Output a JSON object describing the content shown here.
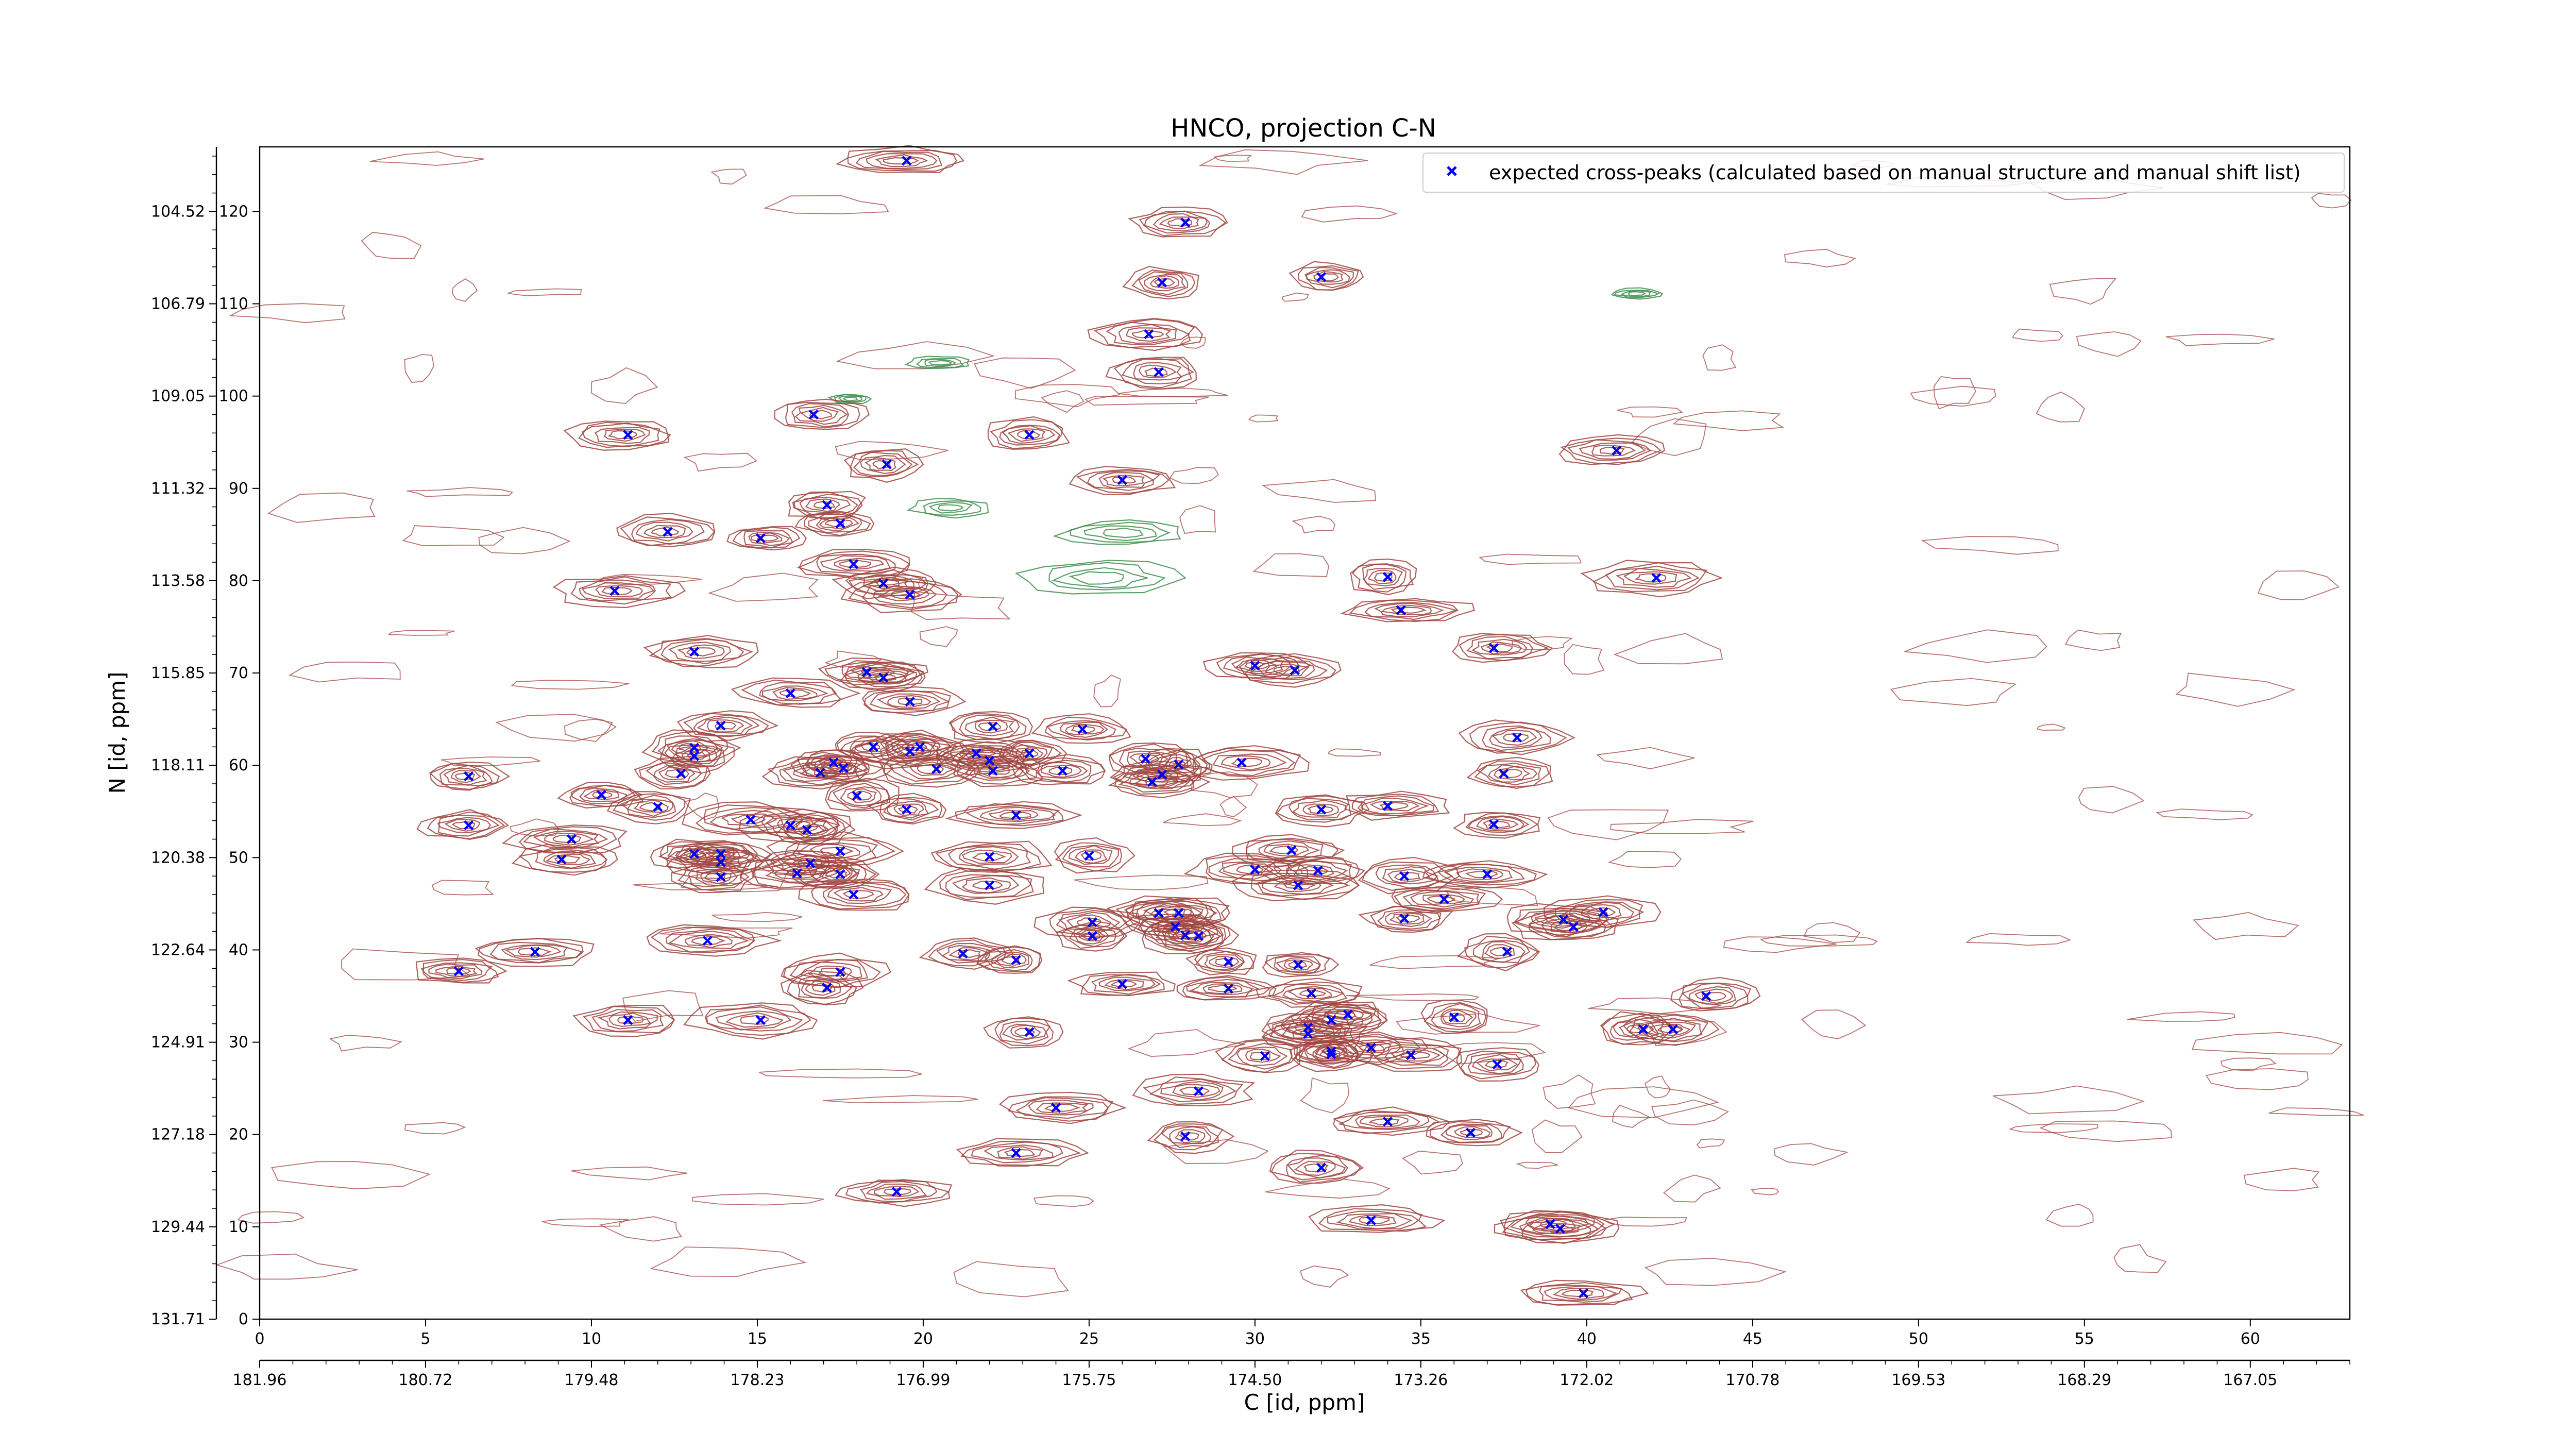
{
  "chart_data": {
    "type": "scatter",
    "title": "HNCO, projection C-N",
    "xlabel": "C [id, ppm]",
    "ylabel": "N [id, ppm]",
    "xlim": [
      0,
      63
    ],
    "ylim": [
      0,
      127
    ],
    "x_index_ticks": [
      0,
      5,
      10,
      15,
      20,
      25,
      30,
      35,
      40,
      45,
      50,
      55,
      60
    ],
    "x_ppm_tick_labels": [
      "181.96",
      "180.72",
      "179.48",
      "178.23",
      "176.99",
      "175.75",
      "174.50",
      "173.26",
      "172.02",
      "170.78",
      "169.53",
      "168.29",
      "167.05"
    ],
    "y_index_ticks": [
      0,
      10,
      20,
      30,
      40,
      50,
      60,
      70,
      80,
      90,
      100,
      110,
      120
    ],
    "y_ppm_tick_labels": [
      "131.71",
      "129.44",
      "127.18",
      "124.91",
      "122.64",
      "120.38",
      "118.11",
      "115.85",
      "113.58",
      "111.32",
      "109.05",
      "106.79",
      "104.52"
    ],
    "grid": false,
    "legend_position": "top-right",
    "contour_colors": {
      "positive": "#a0453f",
      "negative": "#3e8f4e"
    },
    "series": [
      {
        "name": "expected cross-peaks (calculated based on manual structure and manual shift list)",
        "marker": "x",
        "color": "#0000ff",
        "points": [
          [
            19.5,
            125.5
          ],
          [
            27.9,
            118.8
          ],
          [
            27.2,
            112.3
          ],
          [
            32.0,
            112.9
          ],
          [
            26.8,
            106.7
          ],
          [
            27.1,
            102.6
          ],
          [
            16.7,
            98.0
          ],
          [
            11.1,
            95.8
          ],
          [
            23.2,
            95.8
          ],
          [
            40.9,
            94.1
          ],
          [
            18.9,
            92.6
          ],
          [
            26.0,
            90.9
          ],
          [
            17.1,
            88.2
          ],
          [
            17.5,
            86.2
          ],
          [
            12.3,
            85.3
          ],
          [
            15.1,
            84.6
          ],
          [
            17.9,
            81.8
          ],
          [
            10.7,
            78.9
          ],
          [
            18.8,
            79.7
          ],
          [
            19.6,
            78.5
          ],
          [
            34.0,
            80.4
          ],
          [
            42.1,
            80.3
          ],
          [
            34.4,
            76.8
          ],
          [
            13.1,
            72.3
          ],
          [
            37.2,
            72.7
          ],
          [
            30.0,
            70.8
          ],
          [
            31.2,
            70.3
          ],
          [
            18.3,
            70.1
          ],
          [
            18.8,
            69.5
          ],
          [
            16.0,
            67.8
          ],
          [
            19.6,
            66.9
          ],
          [
            13.9,
            64.3
          ],
          [
            22.1,
            64.2
          ],
          [
            24.8,
            63.9
          ],
          [
            37.9,
            63.0
          ],
          [
            18.5,
            62.0
          ],
          [
            19.9,
            62.0
          ],
          [
            13.1,
            61.9
          ],
          [
            19.6,
            61.5
          ],
          [
            13.1,
            61.0
          ],
          [
            21.6,
            61.3
          ],
          [
            23.2,
            61.3
          ],
          [
            22.0,
            60.5
          ],
          [
            27.7,
            60.1
          ],
          [
            26.7,
            60.7
          ],
          [
            29.6,
            60.3
          ],
          [
            12.7,
            59.1
          ],
          [
            16.9,
            59.2
          ],
          [
            17.6,
            59.7
          ],
          [
            17.3,
            60.3
          ],
          [
            20.4,
            59.6
          ],
          [
            22.1,
            59.4
          ],
          [
            24.2,
            59.4
          ],
          [
            27.2,
            59.0
          ],
          [
            26.9,
            58.2
          ],
          [
            37.5,
            59.1
          ],
          [
            6.3,
            58.8
          ],
          [
            10.3,
            56.8
          ],
          [
            12.0,
            55.5
          ],
          [
            18.0,
            56.7
          ],
          [
            19.5,
            55.2
          ],
          [
            32.0,
            55.2
          ],
          [
            34.0,
            55.6
          ],
          [
            22.8,
            54.6
          ],
          [
            14.8,
            54.1
          ],
          [
            16.0,
            53.5
          ],
          [
            16.5,
            53.0
          ],
          [
            37.2,
            53.6
          ],
          [
            6.3,
            53.5
          ],
          [
            9.4,
            52.0
          ],
          [
            13.1,
            50.4
          ],
          [
            13.9,
            50.4
          ],
          [
            16.6,
            49.4
          ],
          [
            17.5,
            50.7
          ],
          [
            22.0,
            50.1
          ],
          [
            25.0,
            50.2
          ],
          [
            31.1,
            50.8
          ],
          [
            9.1,
            49.8
          ],
          [
            13.9,
            49.5
          ],
          [
            13.9,
            47.9
          ],
          [
            16.2,
            48.3
          ],
          [
            17.5,
            48.2
          ],
          [
            30.0,
            48.7
          ],
          [
            31.9,
            48.6
          ],
          [
            34.5,
            48.0
          ],
          [
            37.0,
            48.2
          ],
          [
            22.0,
            47.0
          ],
          [
            31.3,
            47.0
          ],
          [
            17.9,
            46.0
          ],
          [
            35.7,
            45.5
          ],
          [
            40.5,
            44.1
          ],
          [
            27.1,
            44.0
          ],
          [
            27.7,
            44.0
          ],
          [
            39.3,
            43.3
          ],
          [
            25.1,
            43.0
          ],
          [
            34.5,
            43.4
          ],
          [
            27.6,
            42.5
          ],
          [
            39.6,
            42.5
          ],
          [
            27.9,
            41.6
          ],
          [
            25.1,
            41.5
          ],
          [
            28.3,
            41.5
          ],
          [
            13.5,
            41.0
          ],
          [
            8.3,
            39.8
          ],
          [
            21.2,
            39.6
          ],
          [
            37.6,
            39.8
          ],
          [
            22.8,
            38.9
          ],
          [
            29.2,
            38.7
          ],
          [
            31.3,
            38.4
          ],
          [
            6.0,
            37.7
          ],
          [
            17.5,
            37.6
          ],
          [
            26.0,
            36.3
          ],
          [
            17.1,
            35.9
          ],
          [
            29.2,
            35.8
          ],
          [
            31.7,
            35.3
          ],
          [
            43.6,
            35.0
          ],
          [
            32.8,
            33.0
          ],
          [
            11.1,
            32.4
          ],
          [
            15.1,
            32.4
          ],
          [
            36.0,
            32.7
          ],
          [
            32.3,
            32.4
          ],
          [
            31.6,
            31.6
          ],
          [
            23.2,
            31.1
          ],
          [
            31.6,
            30.9
          ],
          [
            42.6,
            31.4
          ],
          [
            41.7,
            31.4
          ],
          [
            33.5,
            29.4
          ],
          [
            32.3,
            29.0
          ],
          [
            34.7,
            28.6
          ],
          [
            32.3,
            28.7
          ],
          [
            30.3,
            28.5
          ],
          [
            37.3,
            27.6
          ],
          [
            28.3,
            24.7
          ],
          [
            24.0,
            22.9
          ],
          [
            34.0,
            21.4
          ],
          [
            36.5,
            20.2
          ],
          [
            27.9,
            19.8
          ],
          [
            22.8,
            18.0
          ],
          [
            32.0,
            16.4
          ],
          [
            19.2,
            13.8
          ],
          [
            33.5,
            10.7
          ],
          [
            38.9,
            10.3
          ],
          [
            39.2,
            9.8
          ],
          [
            39.9,
            2.8
          ]
        ]
      }
    ]
  }
}
